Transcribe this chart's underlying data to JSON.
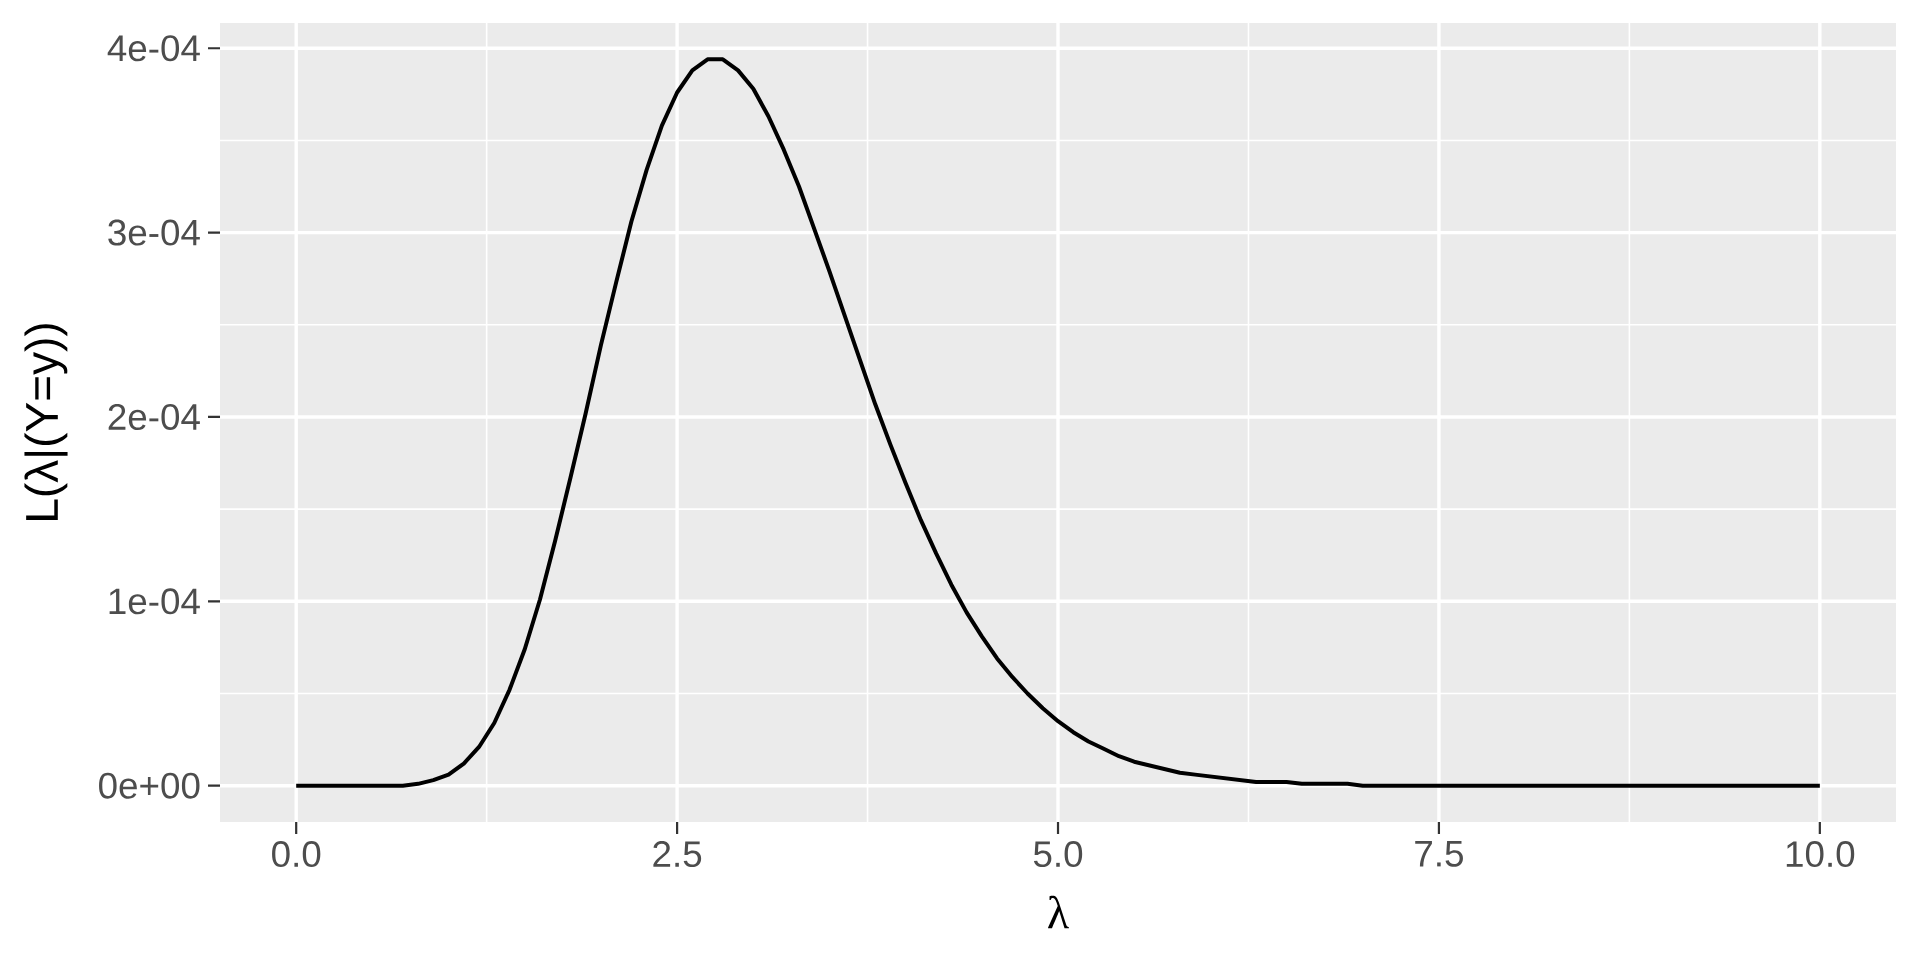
{
  "chart_data": {
    "type": "line",
    "xlabel": "λ",
    "ylabel": "L(λ|(Y=y))",
    "x": [
      0,
      0.1,
      0.2,
      0.3,
      0.4,
      0.5,
      0.6,
      0.7,
      0.8,
      0.9,
      1,
      1.1,
      1.2,
      1.3,
      1.4,
      1.5,
      1.6,
      1.7,
      1.8,
      1.9,
      2,
      2.1,
      2.2,
      2.3,
      2.4,
      2.5,
      2.6,
      2.7,
      2.8,
      2.9,
      3,
      3.1,
      3.2,
      3.3,
      3.4,
      3.5,
      3.6,
      3.7,
      3.8,
      3.9,
      4,
      4.1,
      4.2,
      4.3,
      4.4,
      4.5,
      4.6,
      4.7,
      4.8,
      4.9,
      5,
      5.1,
      5.2,
      5.3,
      5.4,
      5.5,
      5.6,
      5.7,
      5.8,
      5.9,
      6,
      6.1,
      6.2,
      6.3,
      6.4,
      6.5,
      6.6,
      6.7,
      6.8,
      6.9,
      7,
      7.1,
      7.2,
      7.3,
      7.4,
      7.5,
      7.6,
      7.7,
      7.8,
      7.9,
      8,
      8.1,
      8.2,
      8.3,
      8.4,
      8.5,
      8.6,
      8.7,
      8.8,
      8.9,
      9,
      9.1,
      9.2,
      9.3,
      9.4,
      9.5,
      9.6,
      9.7,
      9.8,
      9.9,
      10
    ],
    "series": [
      {
        "color": "#000000",
        "values": [
          0,
          0,
          0,
          0,
          0,
          0,
          0,
          0,
          1e-06,
          3e-06,
          6e-06,
          1.2e-05,
          2.1e-05,
          3.4e-05,
          5.2e-05,
          7.4e-05,
          0.000101,
          0.000133,
          0.000167,
          0.000202,
          0.000239,
          0.000273,
          0.000306,
          0.000334,
          0.000358,
          0.000376,
          0.000388,
          0.000394,
          0.000394,
          0.000388,
          0.000378,
          0.000363,
          0.000345,
          0.000325,
          0.000302,
          0.000279,
          0.000255,
          0.000231,
          0.000207,
          0.000185,
          0.000164,
          0.000144,
          0.000126,
          0.000109,
          9.4e-05,
          8.1e-05,
          6.9e-05,
          5.9e-05,
          5e-05,
          4.2e-05,
          3.5e-05,
          2.9e-05,
          2.4e-05,
          2e-05,
          1.6e-05,
          1.3e-05,
          1.1e-05,
          9e-06,
          7e-06,
          6e-06,
          5e-06,
          4e-06,
          3e-06,
          2e-06,
          2e-06,
          2e-06,
          1e-06,
          1e-06,
          1e-06,
          1e-06,
          0,
          0,
          0,
          0,
          0,
          0,
          0,
          0,
          0,
          0,
          0,
          0,
          0,
          0,
          0,
          0,
          0,
          0,
          0,
          0,
          0,
          0,
          0,
          0,
          0,
          0,
          0,
          0,
          0,
          0,
          0
        ]
      }
    ],
    "xlim": [
      -0.5,
      10.5
    ],
    "ylim": [
      -1.97e-05,
      0.0004137
    ],
    "xticks": [
      {
        "value": 0,
        "label": "0.0"
      },
      2.5,
      {
        "value": 5,
        "label": "5.0"
      },
      7.5,
      {
        "value": 10,
        "label": "10.0"
      }
    ],
    "yticks": [
      {
        "value": 0,
        "label": "0e+00"
      },
      {
        "value": 0.0001,
        "label": "1e-04"
      },
      {
        "value": 0.0002,
        "label": "2e-04"
      },
      {
        "value": 0.0003,
        "label": "3e-04"
      },
      {
        "value": 0.0004,
        "label": "4e-04"
      }
    ],
    "grid": true,
    "line_style": "solid"
  }
}
